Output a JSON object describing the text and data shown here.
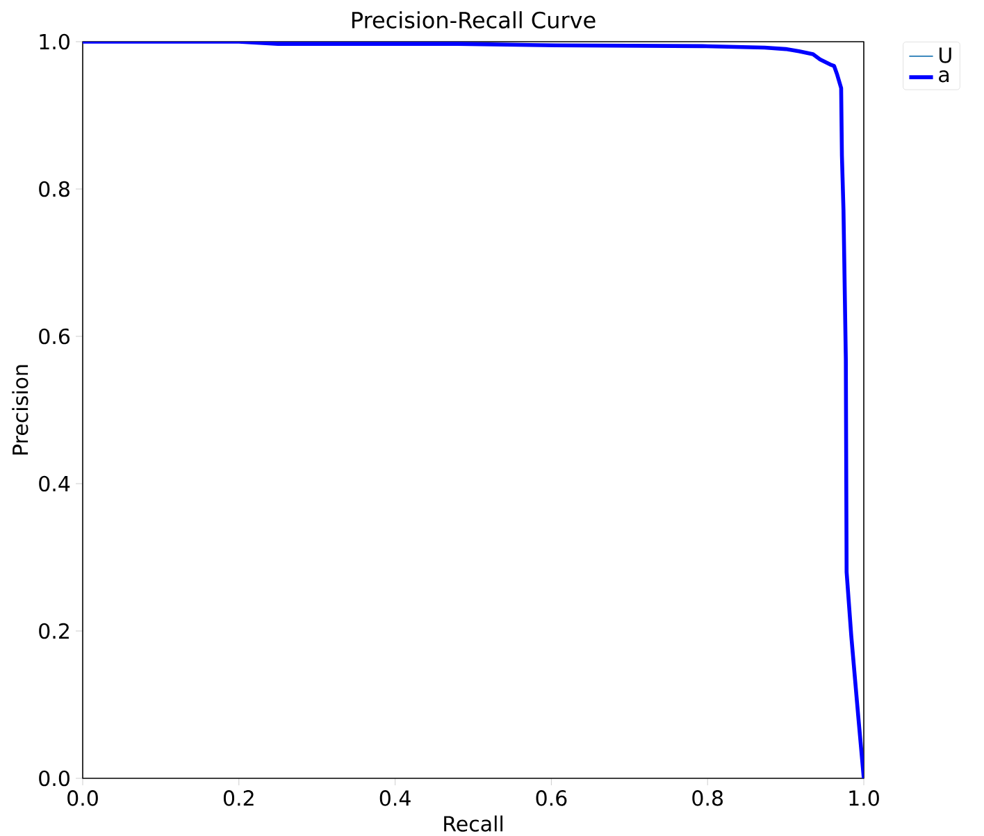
{
  "chart_data": {
    "type": "line",
    "title": "Precision-Recall Curve",
    "xlabel": "Recall",
    "ylabel": "Precision",
    "xlim": [
      0,
      1
    ],
    "ylim": [
      0,
      1
    ],
    "xticks": [
      {
        "value": 0,
        "label": "0.0"
      },
      0.2,
      0.4,
      0.6,
      0.8,
      {
        "value": 1,
        "label": "1.0"
      }
    ],
    "yticks": [
      {
        "value": 0,
        "label": "0.0"
      },
      0.2,
      0.4,
      0.6,
      0.8,
      {
        "value": 1,
        "label": "1.0"
      }
    ],
    "legend": "top right",
    "series": [
      {
        "name": "U",
        "color": "#1f77b4"
      },
      {
        "name": "a",
        "color": "#0000ff",
        "x": [
          0,
          0.2,
          0.25,
          0.48,
          0.606,
          0.793,
          0.873,
          0.9,
          0.917,
          0.935,
          0.944,
          0.957,
          0.962,
          0.966,
          0.971,
          0.972,
          0.974,
          0.977,
          0.978,
          0.984,
          0.993,
          1.0
        ],
        "values": [
          1.0,
          1.0,
          0.997,
          0.997,
          0.995,
          0.994,
          0.992,
          0.99,
          0.987,
          0.983,
          0.976,
          0.969,
          0.967,
          0.955,
          0.937,
          0.845,
          0.771,
          0.569,
          0.28,
          0.193,
          0.083,
          0.0
        ]
      }
    ]
  }
}
